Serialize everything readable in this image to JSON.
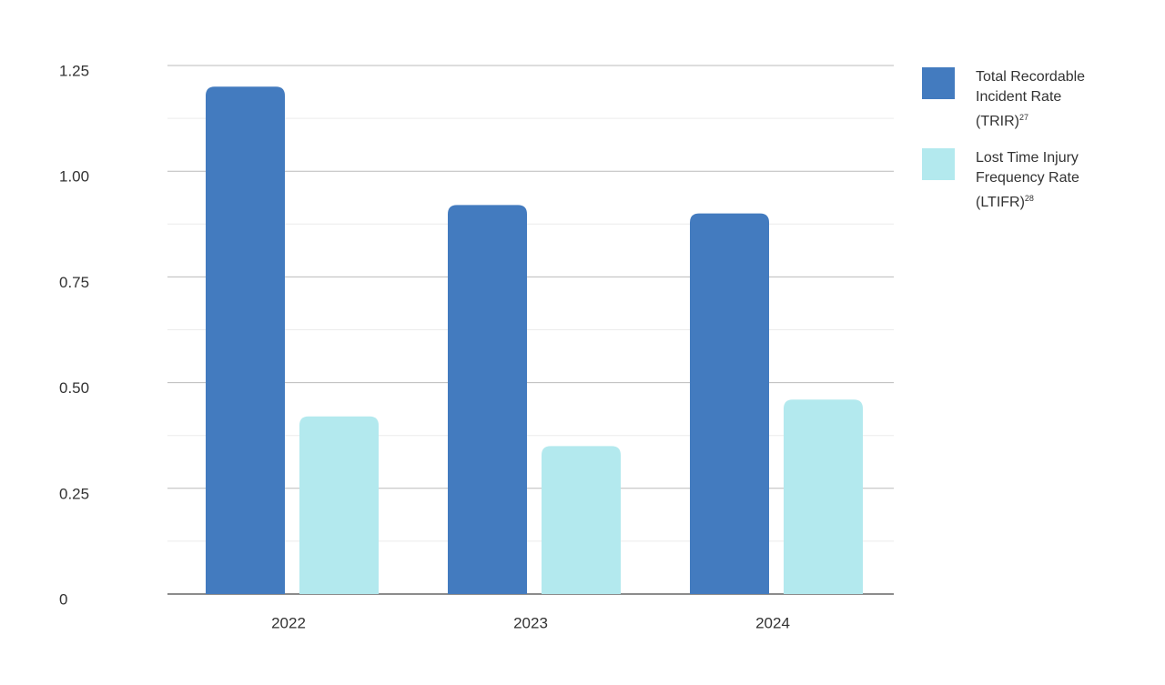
{
  "chart_data": {
    "type": "bar",
    "categories": [
      "2022",
      "2023",
      "2024"
    ],
    "series": [
      {
        "name": "Total Recordable Incident Rate (TRIR)",
        "footnote": "27",
        "color": "#437bbf",
        "values": [
          1.2,
          0.92,
          0.9
        ]
      },
      {
        "name": "Lost Time Injury Frequency Rate (LTIFR)",
        "footnote": "28",
        "color": "#b3e9ee",
        "values": [
          0.42,
          0.35,
          0.46
        ]
      }
    ],
    "ylim": [
      0,
      1.25
    ],
    "yticks": [
      0,
      0.25,
      {
        "value": 0.5,
        "label": "0.50"
      },
      0.75,
      {
        "value": 1,
        "label": "1.00"
      },
      1.25
    ],
    "grid": true
  }
}
